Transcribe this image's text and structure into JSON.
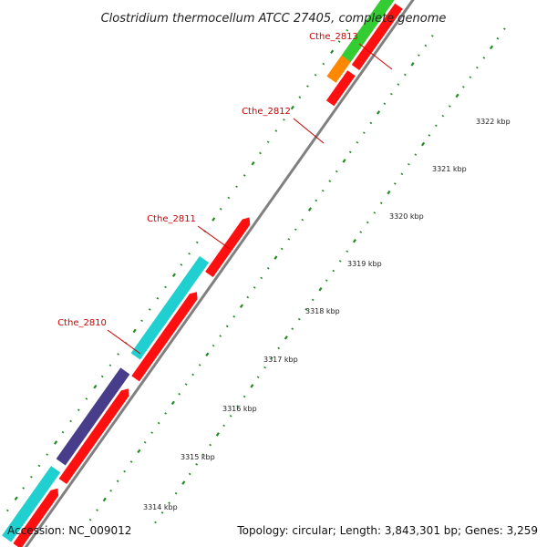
{
  "title": "Clostridium thermocellum ATCC 27405, complete genome",
  "footer": {
    "accession": "Accession: NC_009012",
    "summary": "Topology: circular; Length: 3,843,301 bp; Genes: 3,259"
  },
  "gene_labels": [
    "Cthe_2813",
    "Cthe_2812",
    "Cthe_2811",
    "Cthe_2810"
  ],
  "kbp_labels": [
    "3322 kbp",
    "3321 kbp",
    "3320 kbp",
    "3319 kbp",
    "3318 kbp",
    "3317 kbp",
    "3316 kbp",
    "3315 kbp",
    "3314 kbp"
  ],
  "colors": {
    "background": "#ffffff",
    "backbone": "#808080",
    "forward_cds": "#ff1010",
    "cyan_feature": "#20d0d0",
    "purple_feature": "#483d8b",
    "green_feature": "#33cc33",
    "orange_feature": "#ff8800",
    "tick": "#228b22",
    "label": "#cc0000"
  }
}
